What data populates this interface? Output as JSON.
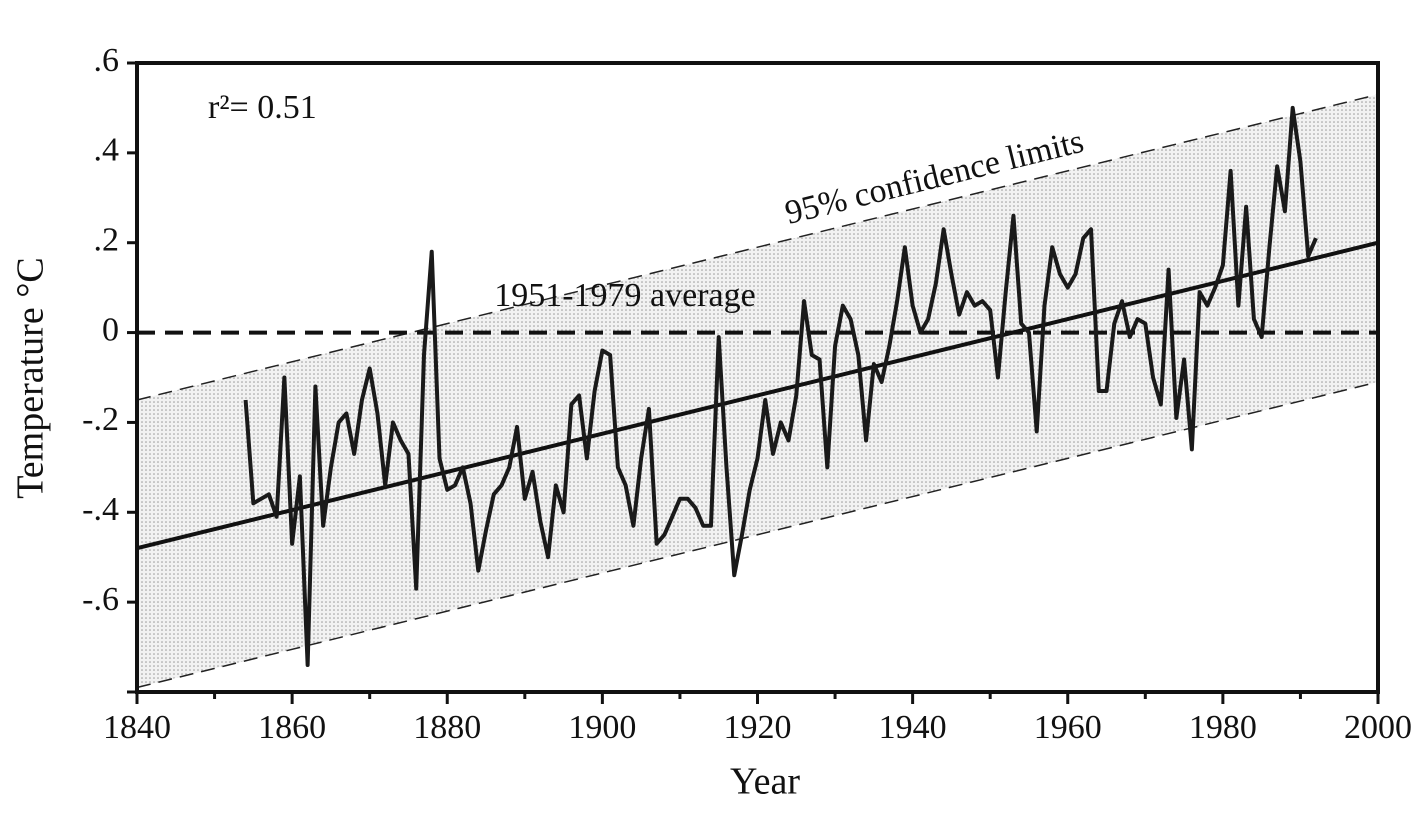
{
  "chart_data": {
    "type": "line",
    "x_label": "Year",
    "y_label": "Temperature °C",
    "annotations": [
      "r²= 0.51",
      "95% confidence limits",
      "1951-1979 average"
    ],
    "x": [
      1854,
      1855,
      1856,
      1857,
      1858,
      1859,
      1860,
      1861,
      1862,
      1863,
      1864,
      1865,
      1866,
      1867,
      1868,
      1869,
      1870,
      1871,
      1872,
      1873,
      1874,
      1875,
      1876,
      1877,
      1878,
      1879,
      1880,
      1881,
      1882,
      1883,
      1884,
      1885,
      1886,
      1887,
      1888,
      1889,
      1890,
      1891,
      1892,
      1893,
      1894,
      1895,
      1896,
      1897,
      1898,
      1899,
      1900,
      1901,
      1902,
      1903,
      1904,
      1905,
      1906,
      1907,
      1908,
      1909,
      1910,
      1911,
      1912,
      1913,
      1914,
      1915,
      1916,
      1917,
      1918,
      1919,
      1920,
      1921,
      1922,
      1923,
      1924,
      1925,
      1926,
      1927,
      1928,
      1929,
      1930,
      1931,
      1932,
      1933,
      1934,
      1935,
      1936,
      1937,
      1938,
      1939,
      1940,
      1941,
      1942,
      1943,
      1944,
      1945,
      1946,
      1947,
      1948,
      1949,
      1950,
      1951,
      1952,
      1953,
      1954,
      1955,
      1956,
      1957,
      1958,
      1959,
      1960,
      1961,
      1962,
      1963,
      1964,
      1965,
      1966,
      1967,
      1968,
      1969,
      1970,
      1971,
      1972,
      1973,
      1974,
      1975,
      1976,
      1977,
      1978,
      1979,
      1980,
      1981,
      1982,
      1983,
      1984,
      1985,
      1986,
      1987,
      1988,
      1989,
      1990,
      1991,
      1992
    ],
    "values": [
      -0.15,
      -0.38,
      -0.37,
      -0.36,
      -0.41,
      -0.1,
      -0.47,
      -0.32,
      -0.74,
      -0.12,
      -0.43,
      -0.3,
      -0.2,
      -0.18,
      -0.27,
      -0.15,
      -0.08,
      -0.18,
      -0.34,
      -0.2,
      -0.24,
      -0.27,
      -0.57,
      -0.05,
      0.18,
      -0.28,
      -0.35,
      -0.34,
      -0.3,
      -0.38,
      -0.53,
      -0.44,
      -0.36,
      -0.34,
      -0.3,
      -0.21,
      -0.37,
      -0.31,
      -0.42,
      -0.5,
      -0.34,
      -0.4,
      -0.16,
      -0.14,
      -0.28,
      -0.13,
      -0.04,
      -0.05,
      -0.3,
      -0.34,
      -0.43,
      -0.28,
      -0.17,
      -0.47,
      -0.45,
      -0.41,
      -0.37,
      -0.37,
      -0.39,
      -0.43,
      -0.43,
      -0.01,
      -0.3,
      -0.54,
      -0.45,
      -0.35,
      -0.28,
      -0.15,
      -0.27,
      -0.2,
      -0.24,
      -0.14,
      0.07,
      -0.05,
      -0.06,
      -0.3,
      -0.03,
      0.06,
      0.03,
      -0.05,
      -0.24,
      -0.07,
      -0.11,
      -0.03,
      0.07,
      0.19,
      0.06,
      0.0,
      0.03,
      0.11,
      0.23,
      0.13,
      0.04,
      0.09,
      0.06,
      0.07,
      0.05,
      -0.1,
      0.09,
      0.26,
      0.02,
      0.0,
      -0.22,
      0.06,
      0.19,
      0.13,
      0.1,
      0.13,
      0.21,
      0.23,
      -0.13,
      -0.13,
      0.02,
      0.07,
      -0.01,
      0.03,
      0.02,
      -0.1,
      -0.16,
      0.14,
      -0.19,
      -0.06,
      -0.26,
      0.09,
      0.06,
      0.1,
      0.15,
      0.36,
      0.06,
      0.28,
      0.03,
      -0.01,
      0.19,
      0.37,
      0.27,
      0.5,
      0.38,
      0.17,
      0.21
    ],
    "color": "#1a1a1a",
    "trend": {
      "x": [
        1840,
        2000
      ],
      "values": [
        -0.48,
        0.2
      ]
    },
    "confidence_upper": {
      "x": [
        1840,
        2000
      ],
      "values": [
        -0.15,
        0.53
      ]
    },
    "confidence_lower": {
      "x": [
        1840,
        2000
      ],
      "values": [
        -0.79,
        -0.11
      ]
    },
    "average": {
      "x": [
        1840,
        2000
      ],
      "values": [
        0,
        0
      ]
    },
    "xlim": [
      1840,
      2000
    ],
    "xticks": [
      1840,
      1860,
      1880,
      1900,
      1920,
      1940,
      1960,
      1980,
      2000
    ],
    "xminorticks": [
      1850,
      1870,
      1890,
      1910,
      1930,
      1950,
      1970,
      1990
    ],
    "ylim": [
      -0.8,
      0.6
    ],
    "yticks": [
      {
        "value": 0.6,
        "label": ".6"
      },
      {
        "value": 0.4,
        "label": ".4"
      },
      {
        "value": 0.2,
        "label": ".2"
      },
      0,
      {
        "value": -0.2,
        "label": "-.2"
      },
      {
        "value": -0.4,
        "label": "-.4"
      },
      {
        "value": -0.6,
        "label": "-.6"
      },
      {
        "value": -0.8,
        "label": ""
      }
    ]
  }
}
